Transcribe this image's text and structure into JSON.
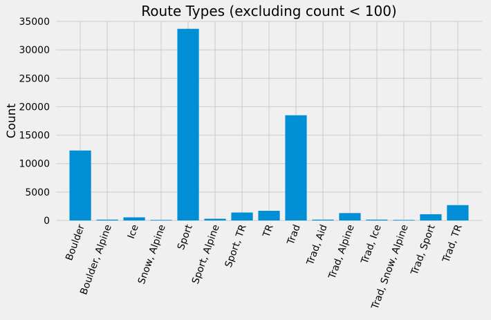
{
  "chart_data": {
    "type": "bar",
    "title": "Route Types (excluding count < 100)",
    "xlabel": "",
    "ylabel": "Count",
    "categories": [
      "Boulder",
      "Boulder, Alpine",
      "Ice",
      "Snow, Alpine",
      "Sport",
      "Sport, Alpine",
      "Sport, TR",
      "TR",
      "Trad",
      "Trad, Aid",
      "Trad, Alpine",
      "Trad, Ice",
      "Trad, Snow, Alpine",
      "Trad, Sport",
      "Trad, TR"
    ],
    "values": [
      12300,
      150,
      550,
      100,
      33700,
      300,
      1400,
      1700,
      18500,
      150,
      1300,
      150,
      100,
      1100,
      2700
    ],
    "ylim": [
      0,
      35000
    ],
    "yticks": [
      0,
      5000,
      10000,
      15000,
      20000,
      25000,
      30000,
      35000
    ],
    "grid": true,
    "bar_color": "#008fd5",
    "background_color": "#f0f0f0",
    "grid_color": "#cbcbcb"
  }
}
